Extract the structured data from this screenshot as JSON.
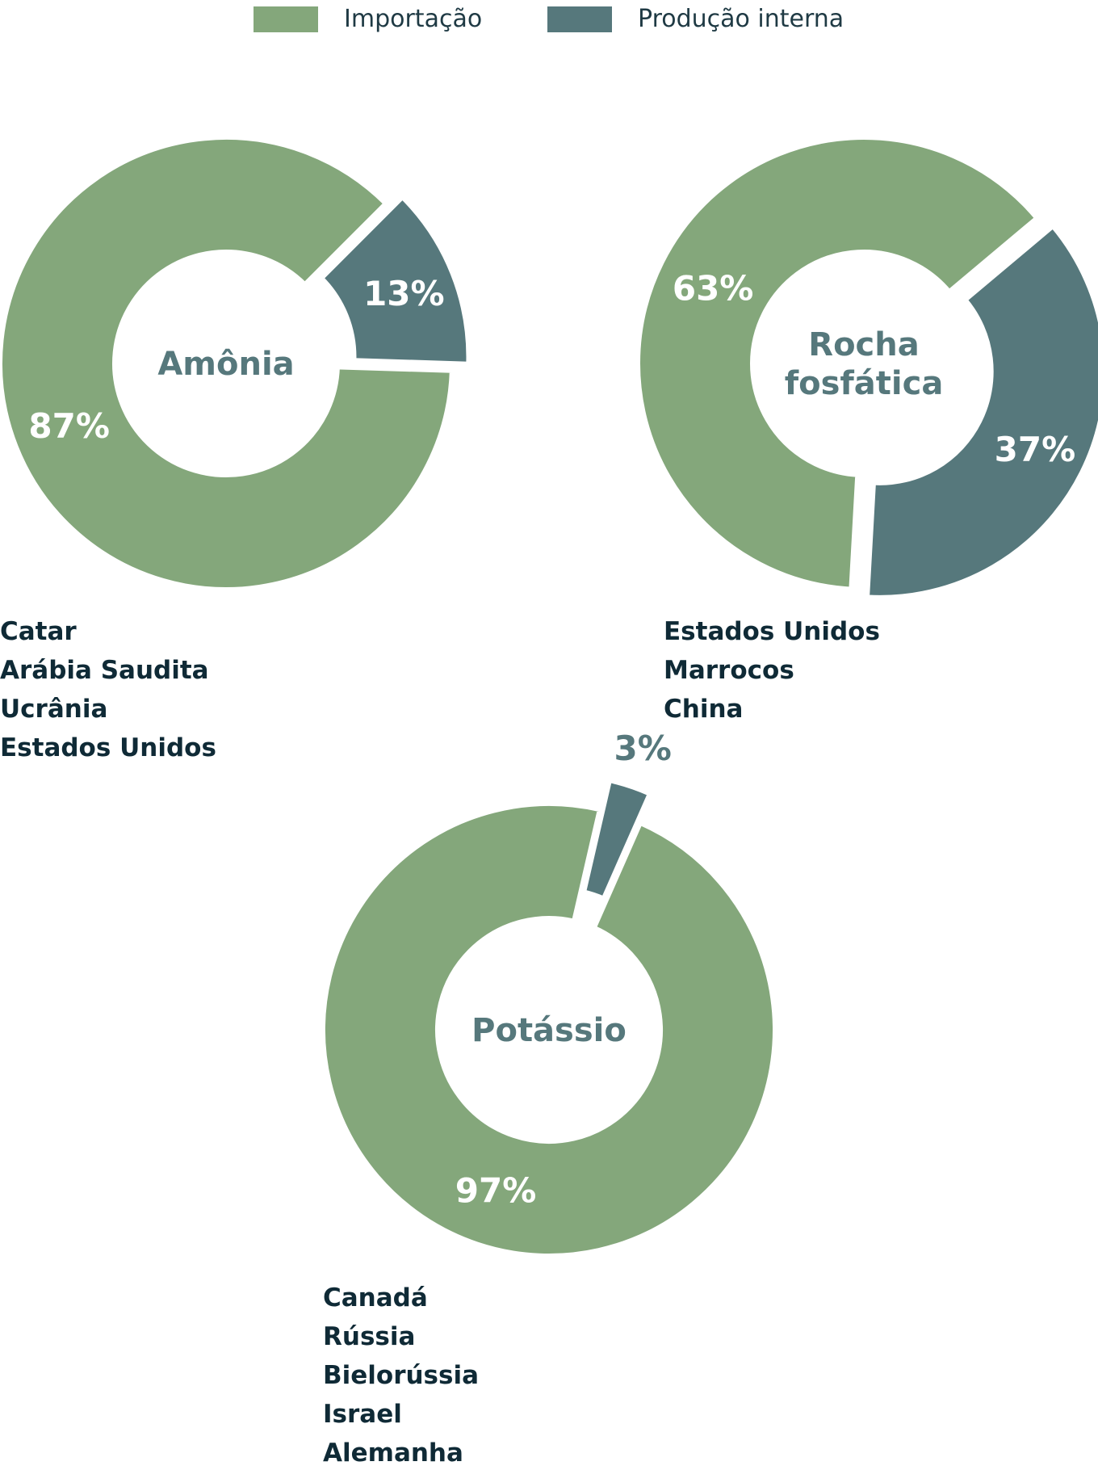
{
  "legend": {
    "items": [
      {
        "label": "Importação",
        "color": "#84a77b"
      },
      {
        "label": "Produção interna",
        "color": "#56787c"
      }
    ]
  },
  "chart_data": [
    {
      "type": "pie",
      "center_label": [
        "Amônia"
      ],
      "slices": [
        {
          "series": "Importação",
          "value": 87,
          "label": "87%",
          "color": "#84a77b"
        },
        {
          "series": "Produção interna",
          "value": 13,
          "label": "13%",
          "color": "#56787c"
        }
      ],
      "countries": [
        "Catar",
        "Arábia Saudita",
        "Ucrânia",
        "Estados Unidos"
      ]
    },
    {
      "type": "pie",
      "center_label": [
        "Rocha",
        "fosfática"
      ],
      "slices": [
        {
          "series": "Importação",
          "value": 63,
          "label": "63%",
          "color": "#84a77b"
        },
        {
          "series": "Produção interna",
          "value": 37,
          "label": "37%",
          "color": "#56787c"
        }
      ],
      "countries": [
        "Estados Unidos",
        "Marrocos",
        "China"
      ]
    },
    {
      "type": "pie",
      "center_label": [
        "Potássio"
      ],
      "slices": [
        {
          "series": "Importação",
          "value": 97,
          "label": "97%",
          "color": "#84a77b"
        },
        {
          "series": "Produção interna",
          "value": 3,
          "label": "3%",
          "color": "#56787c"
        }
      ],
      "countries": [
        "Canadá",
        "Rússia",
        "Bielorússia",
        "Israel",
        "Alemanha"
      ]
    }
  ]
}
